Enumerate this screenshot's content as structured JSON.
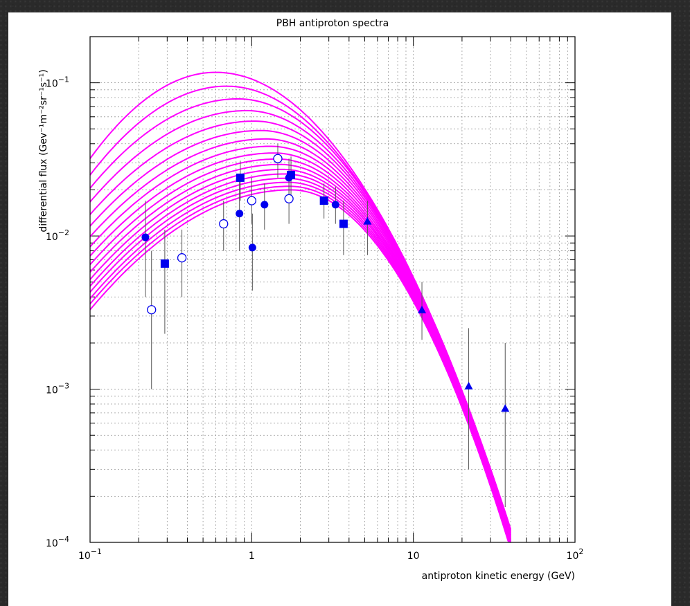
{
  "chart_data": {
    "type": "scatter",
    "title": "PBH antiproton spectra",
    "xlabel": "antiproton kinetic energy (GeV)",
    "ylabel": "differential flux (Gev⁻¹m⁻²sr⁻¹s⁻¹)",
    "xscale": "log",
    "yscale": "log",
    "xlim": [
      0.1,
      100
    ],
    "ylim": [
      0.0001,
      0.2
    ],
    "grid": true,
    "x_ticks": [
      {
        "value": 0.1,
        "base": "10",
        "exp": "−1"
      },
      {
        "value": 1,
        "base": "1",
        "exp": ""
      },
      {
        "value": 10,
        "base": "10",
        "exp": ""
      },
      {
        "value": 100,
        "base": "10",
        "exp": "2"
      }
    ],
    "y_ticks": [
      {
        "value": 0.0001,
        "base": "10",
        "exp": "−4"
      },
      {
        "value": 0.001,
        "base": "10",
        "exp": "−3"
      },
      {
        "value": 0.01,
        "base": "10",
        "exp": "−2"
      },
      {
        "value": 0.1,
        "base": "10",
        "exp": "−1"
      }
    ],
    "curve_color": "#ff00ff",
    "marker_color": "#0000ee",
    "curve_family": {
      "count": 17,
      "peak_flux": [
        0.02,
        0.0211,
        0.0224,
        0.0238,
        0.0254,
        0.0272,
        0.0293,
        0.0318,
        0.0348,
        0.0385,
        0.043,
        0.0488,
        0.0562,
        0.0658,
        0.0785,
        0.095,
        0.117
      ],
      "peak_energy": [
        1.75,
        1.72,
        1.68,
        1.64,
        1.6,
        1.55,
        1.5,
        1.44,
        1.38,
        1.31,
        1.23,
        1.14,
        1.04,
        0.93,
        0.82,
        0.7,
        0.6
      ],
      "flux_at_x_0_1": [
        0.0033,
        0.0036,
        0.0039,
        0.0043,
        0.0047,
        0.0052,
        0.0058,
        0.0065,
        0.0074,
        0.0085,
        0.0099,
        0.0116,
        0.0138,
        0.0167,
        0.0205,
        0.025,
        0.032
      ],
      "flux_at_x_40": [
        9e-05,
        9.2e-05,
        9.4e-05,
        9.6e-05,
        9.8e-05,
        0.0001,
        0.000102,
        0.000104,
        0.000106,
        0.000108,
        0.00011,
        0.000112,
        0.000114,
        0.000116,
        0.000118,
        0.00012,
        0.000122
      ]
    },
    "series": [
      {
        "marker": "filled-circle",
        "points": [
          {
            "x": 0.22,
            "y": 0.0098,
            "y_low": 0.004,
            "y_high": 0.017
          },
          {
            "x": 0.84,
            "y": 0.014,
            "y_low": 0.008,
            "y_high": 0.023
          },
          {
            "x": 1.01,
            "y": 0.0084,
            "y_low": 0.0044,
            "y_high": 0.014
          },
          {
            "x": 1.2,
            "y": 0.016,
            "y_low": 0.011,
            "y_high": 0.022
          },
          {
            "x": 1.7,
            "y": 0.024,
            "y_low": 0.017,
            "y_high": 0.032
          },
          {
            "x": 3.3,
            "y": 0.016,
            "y_low": 0.012,
            "y_high": 0.021
          }
        ]
      },
      {
        "marker": "open-circle",
        "points": [
          {
            "x": 0.24,
            "y": 0.0033,
            "y_low": 0.001,
            "y_high": 0.008
          },
          {
            "x": 0.37,
            "y": 0.0072,
            "y_low": 0.004,
            "y_high": 0.011
          },
          {
            "x": 0.67,
            "y": 0.012,
            "y_low": 0.008,
            "y_high": 0.017
          },
          {
            "x": 1.0,
            "y": 0.017,
            "y_low": 0.012,
            "y_high": 0.024
          },
          {
            "x": 1.45,
            "y": 0.032,
            "y_low": 0.024,
            "y_high": 0.04
          },
          {
            "x": 1.7,
            "y": 0.0175,
            "y_low": 0.012,
            "y_high": 0.026
          }
        ]
      },
      {
        "marker": "filled-square",
        "points": [
          {
            "x": 0.29,
            "y": 0.0066,
            "y_low": 0.0023,
            "y_high": 0.011
          },
          {
            "x": 0.85,
            "y": 0.024,
            "y_low": 0.017,
            "y_high": 0.031
          },
          {
            "x": 1.75,
            "y": 0.025,
            "y_low": 0.018,
            "y_high": 0.033
          },
          {
            "x": 2.8,
            "y": 0.017,
            "y_low": 0.013,
            "y_high": 0.022
          },
          {
            "x": 3.7,
            "y": 0.012,
            "y_low": 0.0075,
            "y_high": 0.017
          }
        ]
      },
      {
        "marker": "filled-triangle",
        "points": [
          {
            "x": 5.2,
            "y": 0.0125,
            "y_low": 0.0075,
            "y_high": 0.017
          },
          {
            "x": 11.3,
            "y": 0.0033,
            "y_low": 0.0021,
            "y_high": 0.005
          },
          {
            "x": 22.0,
            "y": 0.00105,
            "y_low": 0.0003,
            "y_high": 0.0025
          },
          {
            "x": 37.0,
            "y": 0.00075,
            "y_low": 0.00017,
            "y_high": 0.002
          }
        ]
      }
    ]
  }
}
